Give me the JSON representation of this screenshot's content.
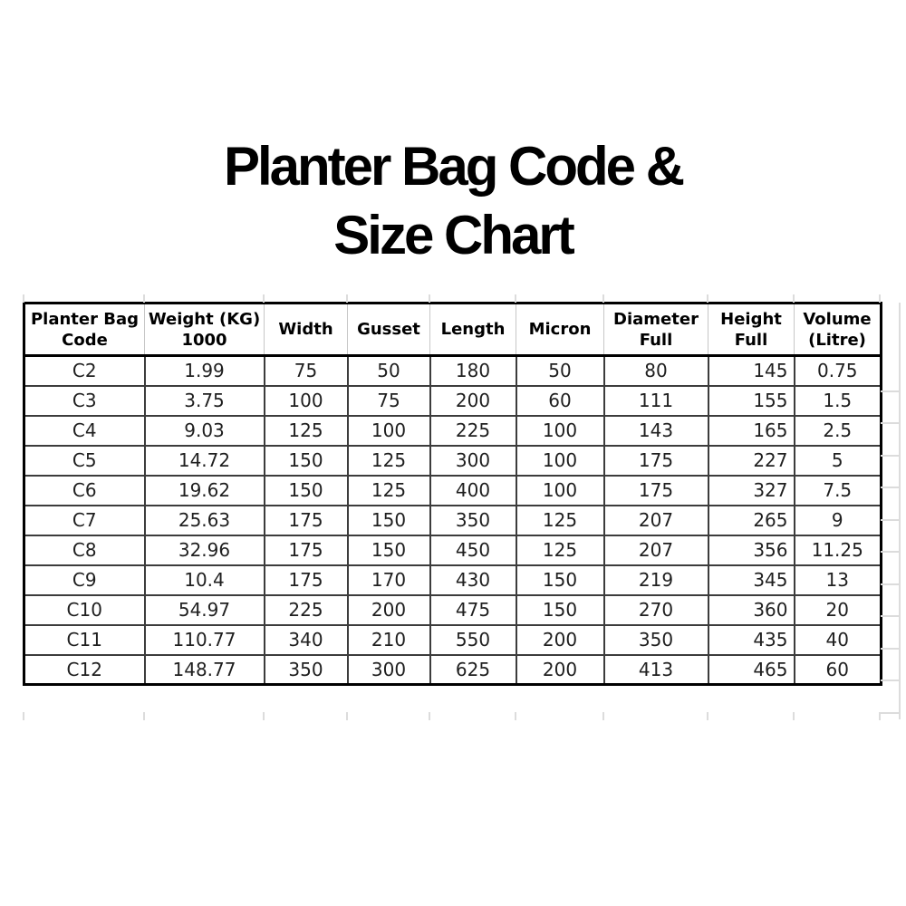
{
  "title": {
    "line1": "Planter Bag Code &",
    "line2": "Size Chart"
  },
  "chart_data": {
    "type": "table",
    "title": "Planter Bag Code & Size Chart",
    "columns": [
      {
        "key": "code",
        "label": "Planter Bag\nCode",
        "align": "center"
      },
      {
        "key": "weight",
        "label": "Weight (KG)\n1000",
        "align": "center"
      },
      {
        "key": "width",
        "label": "Width",
        "align": "center"
      },
      {
        "key": "gusset",
        "label": "Gusset",
        "align": "center"
      },
      {
        "key": "length",
        "label": "Length",
        "align": "center"
      },
      {
        "key": "micron",
        "label": "Micron",
        "align": "center"
      },
      {
        "key": "diameter",
        "label": "Diameter\nFull",
        "align": "center"
      },
      {
        "key": "height",
        "label": "Height\nFull",
        "align": "right"
      },
      {
        "key": "volume",
        "label": "Volume\n(Litre)",
        "align": "center"
      }
    ],
    "rows": [
      [
        "C2",
        "1.99",
        "75",
        "50",
        "180",
        "50",
        "80",
        "145",
        "0.75"
      ],
      [
        "C3",
        "3.75",
        "100",
        "75",
        "200",
        "60",
        "111",
        "155",
        "1.5"
      ],
      [
        "C4",
        "9.03",
        "125",
        "100",
        "225",
        "100",
        "143",
        "165",
        "2.5"
      ],
      [
        "C5",
        "14.72",
        "150",
        "125",
        "300",
        "100",
        "175",
        "227",
        "5"
      ],
      [
        "C6",
        "19.62",
        "150",
        "125",
        "400",
        "100",
        "175",
        "327",
        "7.5"
      ],
      [
        "C7",
        "25.63",
        "175",
        "150",
        "350",
        "125",
        "207",
        "265",
        "9"
      ],
      [
        "C8",
        "32.96",
        "175",
        "150",
        "450",
        "125",
        "207",
        "356",
        "11.25"
      ],
      [
        "C9",
        "10.4",
        "175",
        "170",
        "430",
        "150",
        "219",
        "345",
        "13"
      ],
      [
        "C10",
        "54.97",
        "225",
        "200",
        "475",
        "150",
        "270",
        "360",
        "20"
      ],
      [
        "C11",
        "110.77",
        "340",
        "210",
        "550",
        "200",
        "350",
        "435",
        "40"
      ],
      [
        "C12",
        "148.77",
        "350",
        "300",
        "625",
        "200",
        "413",
        "465",
        "60"
      ]
    ]
  },
  "colors": {
    "text": "#1f1f1f",
    "outer_border": "#000000",
    "body_grid": "#3c3c3c",
    "header_separator": "#c7c7c7",
    "background": "#ffffff"
  }
}
